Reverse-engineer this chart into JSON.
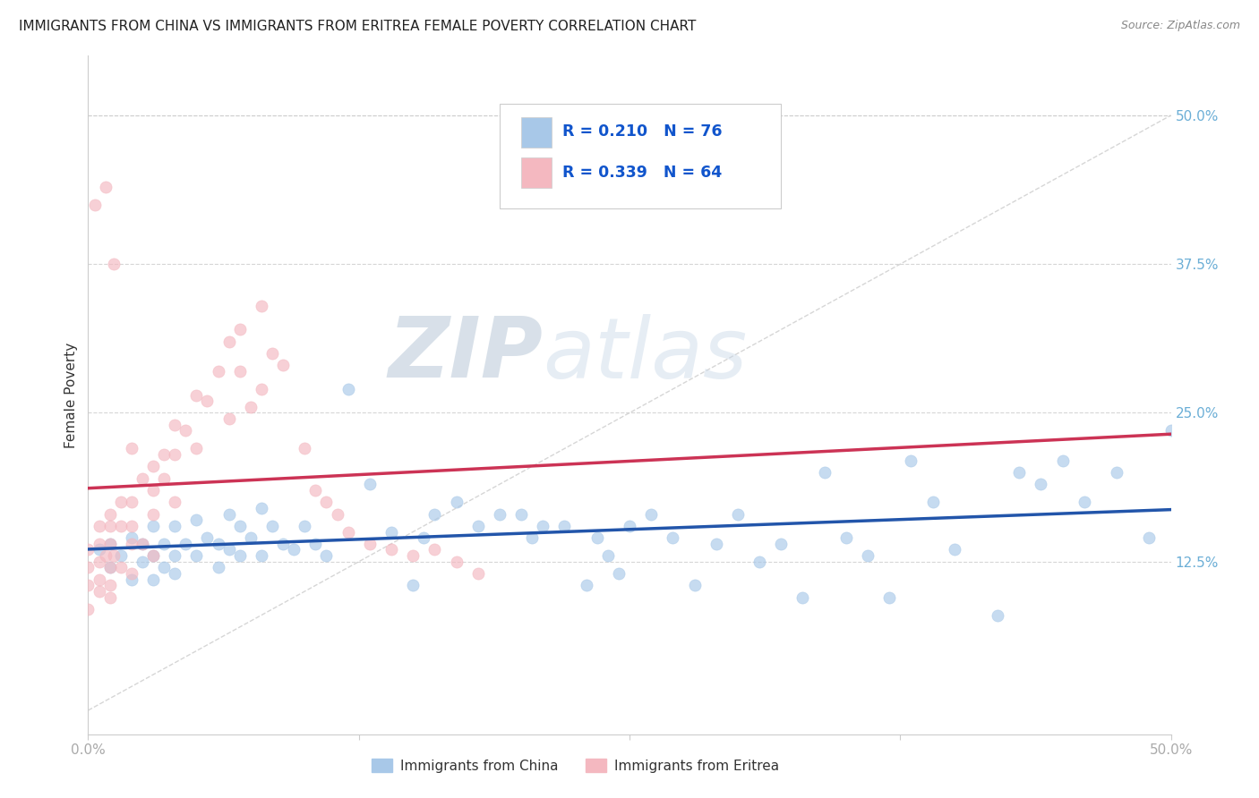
{
  "title": "IMMIGRANTS FROM CHINA VS IMMIGRANTS FROM ERITREA FEMALE POVERTY CORRELATION CHART",
  "source": "Source: ZipAtlas.com",
  "ylabel": "Female Poverty",
  "china_color": "#a8c8e8",
  "eritrea_color": "#f4b8c0",
  "china_line_color": "#2255aa",
  "eritrea_line_color": "#cc3355",
  "diagonal_color": "#cccccc",
  "legend_china_R": "0.210",
  "legend_china_N": "76",
  "legend_eritrea_R": "0.339",
  "legend_eritrea_N": "64",
  "watermark_zip": "ZIP",
  "watermark_atlas": "atlas",
  "background_color": "#ffffff",
  "grid_color": "#cccccc",
  "xlim": [
    0.0,
    0.5
  ],
  "ylim": [
    -0.02,
    0.55
  ],
  "yticks": [
    0.125,
    0.25,
    0.375,
    0.5
  ],
  "ytick_labels": [
    "12.5%",
    "25.0%",
    "37.5%",
    "50.0%"
  ],
  "china_x": [
    0.005,
    0.01,
    0.01,
    0.015,
    0.02,
    0.02,
    0.025,
    0.025,
    0.03,
    0.03,
    0.03,
    0.035,
    0.035,
    0.04,
    0.04,
    0.04,
    0.045,
    0.05,
    0.05,
    0.055,
    0.06,
    0.06,
    0.065,
    0.065,
    0.07,
    0.07,
    0.075,
    0.08,
    0.08,
    0.085,
    0.09,
    0.095,
    0.1,
    0.105,
    0.11,
    0.12,
    0.13,
    0.14,
    0.15,
    0.155,
    0.16,
    0.17,
    0.18,
    0.19,
    0.2,
    0.205,
    0.21,
    0.22,
    0.23,
    0.235,
    0.24,
    0.245,
    0.25,
    0.26,
    0.27,
    0.28,
    0.29,
    0.3,
    0.31,
    0.32,
    0.33,
    0.34,
    0.35,
    0.36,
    0.37,
    0.38,
    0.39,
    0.4,
    0.42,
    0.43,
    0.44,
    0.45,
    0.46,
    0.475,
    0.49,
    0.5
  ],
  "china_y": [
    0.135,
    0.14,
    0.12,
    0.13,
    0.145,
    0.11,
    0.14,
    0.125,
    0.155,
    0.13,
    0.11,
    0.14,
    0.12,
    0.155,
    0.13,
    0.115,
    0.14,
    0.16,
    0.13,
    0.145,
    0.14,
    0.12,
    0.165,
    0.135,
    0.155,
    0.13,
    0.145,
    0.17,
    0.13,
    0.155,
    0.14,
    0.135,
    0.155,
    0.14,
    0.13,
    0.27,
    0.19,
    0.15,
    0.105,
    0.145,
    0.165,
    0.175,
    0.155,
    0.165,
    0.165,
    0.145,
    0.155,
    0.155,
    0.105,
    0.145,
    0.13,
    0.115,
    0.155,
    0.165,
    0.145,
    0.105,
    0.14,
    0.165,
    0.125,
    0.14,
    0.095,
    0.2,
    0.145,
    0.13,
    0.095,
    0.21,
    0.175,
    0.135,
    0.08,
    0.2,
    0.19,
    0.21,
    0.175,
    0.2,
    0.145,
    0.235
  ],
  "eritrea_x": [
    0.0,
    0.0,
    0.0,
    0.0,
    0.005,
    0.005,
    0.005,
    0.005,
    0.005,
    0.008,
    0.01,
    0.01,
    0.01,
    0.01,
    0.01,
    0.01,
    0.012,
    0.015,
    0.015,
    0.015,
    0.02,
    0.02,
    0.02,
    0.02,
    0.025,
    0.025,
    0.03,
    0.03,
    0.03,
    0.03,
    0.035,
    0.035,
    0.04,
    0.04,
    0.04,
    0.045,
    0.05,
    0.05,
    0.055,
    0.06,
    0.065,
    0.065,
    0.07,
    0.07,
    0.075,
    0.08,
    0.08,
    0.085,
    0.09,
    0.1,
    0.105,
    0.11,
    0.115,
    0.12,
    0.13,
    0.14,
    0.15,
    0.16,
    0.17,
    0.18,
    0.003,
    0.008,
    0.012,
    0.02
  ],
  "eritrea_y": [
    0.135,
    0.12,
    0.105,
    0.085,
    0.14,
    0.155,
    0.125,
    0.11,
    0.1,
    0.13,
    0.165,
    0.14,
    0.155,
    0.12,
    0.105,
    0.095,
    0.13,
    0.155,
    0.175,
    0.12,
    0.155,
    0.175,
    0.14,
    0.115,
    0.195,
    0.14,
    0.205,
    0.185,
    0.165,
    0.13,
    0.215,
    0.195,
    0.24,
    0.215,
    0.175,
    0.235,
    0.265,
    0.22,
    0.26,
    0.285,
    0.31,
    0.245,
    0.32,
    0.285,
    0.255,
    0.34,
    0.27,
    0.3,
    0.29,
    0.22,
    0.185,
    0.175,
    0.165,
    0.15,
    0.14,
    0.135,
    0.13,
    0.135,
    0.125,
    0.115,
    0.425,
    0.44,
    0.375,
    0.22
  ]
}
